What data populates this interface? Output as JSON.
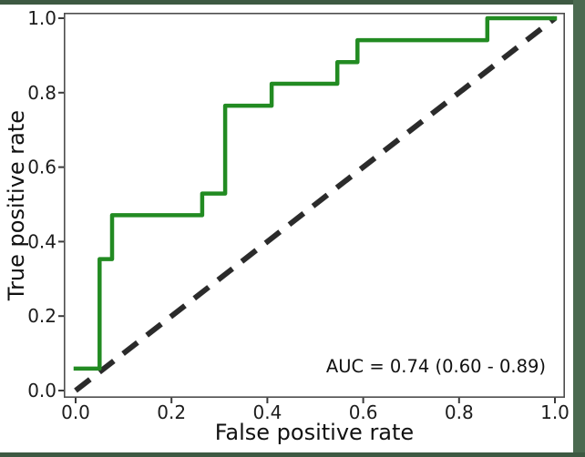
{
  "figure": {
    "kind": "roc-curve-plot",
    "background": "#ffffff",
    "border_bands": {
      "top_color": "#3d5942",
      "right_color": "#4b6a50",
      "bottom_color": "#3d5942"
    }
  },
  "chart_data": {
    "type": "line",
    "title": "",
    "xlabel": "False positive rate",
    "ylabel": "True positive rate",
    "xlim": [
      -0.025,
      1.02
    ],
    "ylim": [
      -0.02,
      1.015
    ],
    "x_ticks": [
      0.0,
      0.2,
      0.4,
      0.6,
      0.8,
      1.0
    ],
    "y_ticks": [
      0.0,
      0.2,
      0.4,
      0.6,
      0.8,
      1.0
    ],
    "grid": false,
    "legend": "none",
    "annotation": {
      "text": "AUC = 0.74 (0.60 - 0.89)",
      "auc": 0.74,
      "ci_low": 0.6,
      "ci_high": 0.89,
      "position": "lower-right"
    },
    "series": [
      {
        "name": "ROC curve",
        "color": "#228B22",
        "style": "solid",
        "line_width": 4.5,
        "points": [
          [
            0.0,
            0.059
          ],
          [
            0.05,
            0.059
          ],
          [
            0.05,
            0.353
          ],
          [
            0.076,
            0.353
          ],
          [
            0.076,
            0.471
          ],
          [
            0.264,
            0.471
          ],
          [
            0.264,
            0.529
          ],
          [
            0.312,
            0.529
          ],
          [
            0.312,
            0.765
          ],
          [
            0.409,
            0.765
          ],
          [
            0.409,
            0.824
          ],
          [
            0.546,
            0.824
          ],
          [
            0.546,
            0.882
          ],
          [
            0.588,
            0.882
          ],
          [
            0.588,
            0.941
          ],
          [
            0.859,
            0.941
          ],
          [
            0.859,
            1.0
          ],
          [
            1.0,
            1.0
          ]
        ]
      },
      {
        "name": "Chance diagonal",
        "color": "#2b2b2b",
        "style": "dashed",
        "line_width": 6,
        "points": [
          [
            0.0,
            0.0
          ],
          [
            1.0,
            1.0
          ]
        ]
      }
    ]
  }
}
